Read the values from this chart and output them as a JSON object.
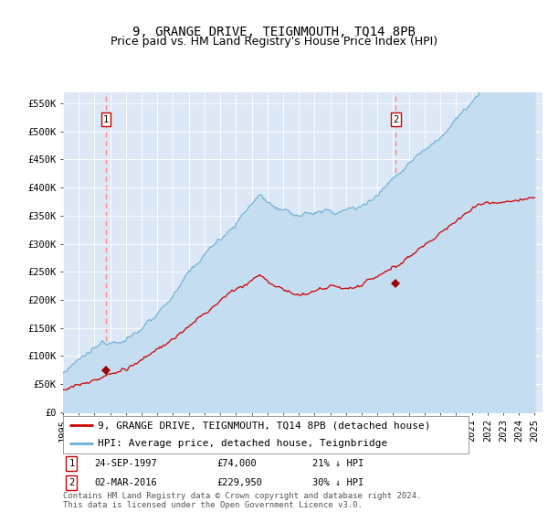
{
  "title": "9, GRANGE DRIVE, TEIGNMOUTH, TQ14 8PB",
  "subtitle": "Price paid vs. HM Land Registry's House Price Index (HPI)",
  "ylim": [
    0,
    570000
  ],
  "yticks": [
    0,
    50000,
    100000,
    150000,
    200000,
    250000,
    300000,
    350000,
    400000,
    450000,
    500000,
    550000
  ],
  "ytick_labels": [
    "£0",
    "£50K",
    "£100K",
    "£150K",
    "£200K",
    "£250K",
    "£300K",
    "£350K",
    "£400K",
    "£450K",
    "£500K",
    "£550K"
  ],
  "background_color": "#dce8f5",
  "hpi_line_color": "#6aaed6",
  "hpi_fill_color": "#c5ddf0",
  "price_line_color": "#cc0000",
  "marker_color": "#990000",
  "vline_color": "#ff8888",
  "purchases": [
    {
      "date_num": 1997.73,
      "price": 74000,
      "label": "1",
      "date_str": "24-SEP-1997",
      "price_str": "£74,000",
      "note": "21% ↓ HPI"
    },
    {
      "date_num": 2016.17,
      "price": 229950,
      "label": "2",
      "date_str": "02-MAR-2016",
      "price_str": "£229,950",
      "note": "30% ↓ HPI"
    }
  ],
  "legend_entries": [
    {
      "label": "9, GRANGE DRIVE, TEIGNMOUTH, TQ14 8PB (detached house)",
      "color": "#cc0000"
    },
    {
      "label": "HPI: Average price, detached house, Teignbridge",
      "color": "#6aaed6"
    }
  ],
  "footer": "Contains HM Land Registry data © Crown copyright and database right 2024.\nThis data is licensed under the Open Government Licence v3.0.",
  "title_fontsize": 10,
  "subtitle_fontsize": 9,
  "tick_fontsize": 7.5,
  "legend_fontsize": 8,
  "footer_fontsize": 6.5
}
